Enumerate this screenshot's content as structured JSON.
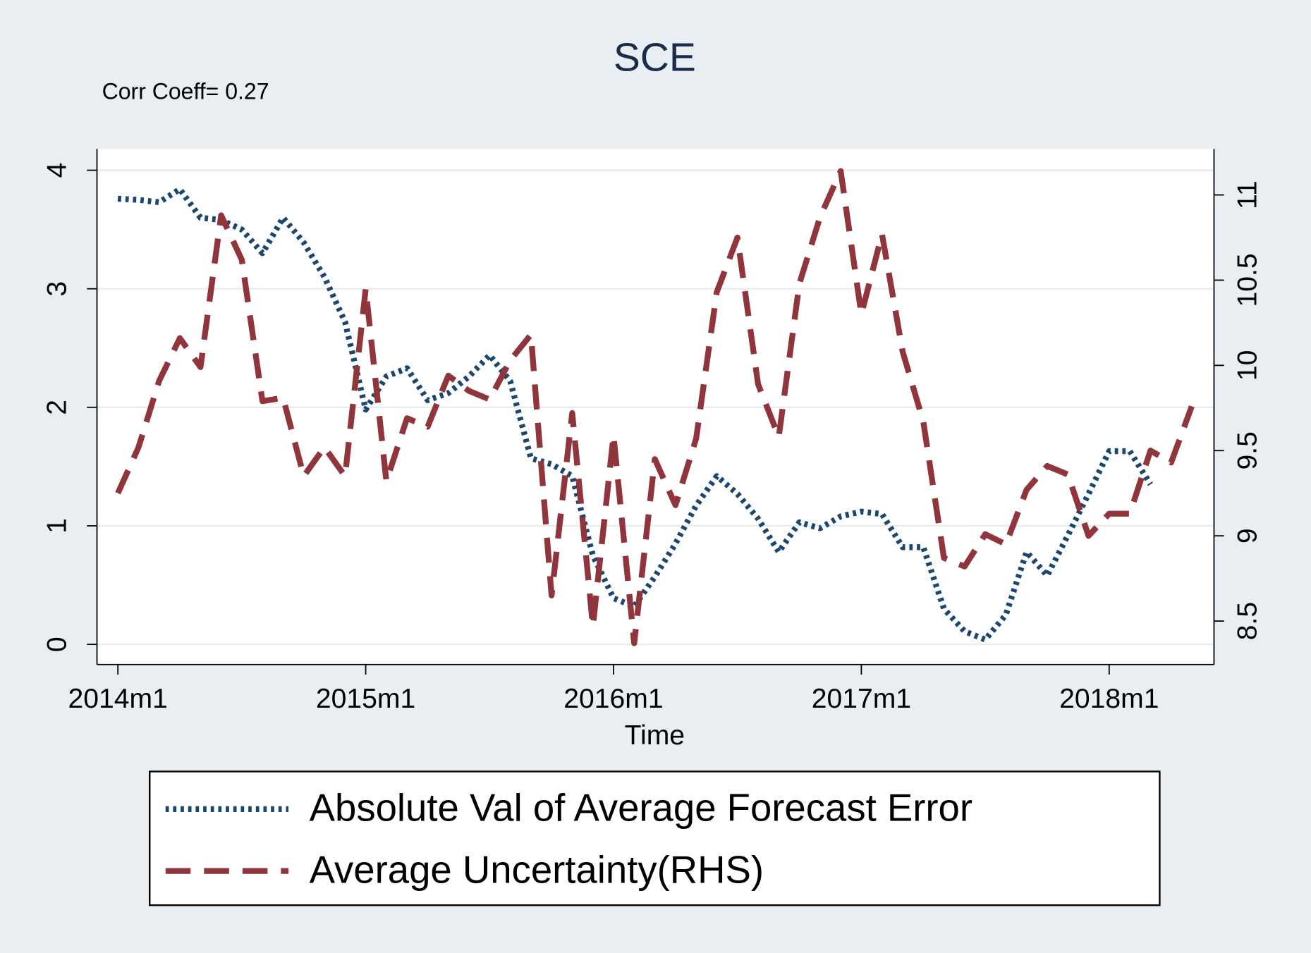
{
  "chart_data": {
    "type": "line",
    "title": "SCE",
    "annotation": "Corr Coeff= 0.27",
    "x_label": "Time",
    "x": [
      "2014m1",
      "2014m2",
      "2014m3",
      "2014m4",
      "2014m5",
      "2014m6",
      "2014m7",
      "2014m8",
      "2014m9",
      "2014m10",
      "2014m11",
      "2014m12",
      "2015m1",
      "2015m2",
      "2015m3",
      "2015m4",
      "2015m5",
      "2015m6",
      "2015m7",
      "2015m8",
      "2015m9",
      "2015m10",
      "2015m11",
      "2015m12",
      "2016m1",
      "2016m2",
      "2016m3",
      "2016m4",
      "2016m5",
      "2016m6",
      "2016m7",
      "2016m8",
      "2016m9",
      "2016m10",
      "2016m11",
      "2016m12",
      "2017m1",
      "2017m2",
      "2017m3",
      "2017m4",
      "2017m5",
      "2017m6",
      "2017m7",
      "2017m8",
      "2017m9",
      "2017m10",
      "2017m11",
      "2017m12",
      "2018m1",
      "2018m2",
      "2018m3",
      "2018m4",
      "2018m5"
    ],
    "xticks": [
      "2014m1",
      "2015m1",
      "2016m1",
      "2017m1",
      "2018m1"
    ],
    "series": [
      {
        "name": "Absolute Val of Average Forecast Error",
        "color": "#1a476f",
        "values": [
          3.76,
          3.75,
          3.73,
          3.84,
          3.6,
          3.58,
          3.5,
          3.3,
          3.6,
          3.39,
          3.1,
          2.72,
          1.98,
          2.26,
          2.33,
          2.06,
          2.12,
          2.26,
          2.44,
          2.22,
          1.57,
          1.52,
          1.42,
          0.75,
          0.39,
          0.32,
          0.57,
          0.85,
          1.17,
          1.42,
          1.27,
          1.06,
          0.78,
          1.03,
          0.98,
          1.08,
          1.12,
          1.1,
          0.82,
          0.82,
          0.3,
          0.11,
          0.04,
          0.25,
          0.78,
          0.58,
          0.92,
          1.27,
          1.63,
          1.63,
          1.35,
          null,
          null
        ]
      },
      {
        "name": "Average Uncertainty(RHS)",
        "color": "#90353b",
        "axis": "y2",
        "values": [
          9.25,
          9.52,
          9.91,
          10.16,
          9.99,
          10.88,
          10.62,
          9.79,
          9.81,
          9.35,
          9.52,
          9.35,
          10.45,
          9.32,
          9.69,
          9.64,
          9.94,
          9.85,
          9.8,
          10.03,
          10.18,
          8.65,
          9.72,
          8.47,
          9.59,
          8.37,
          9.45,
          9.18,
          9.57,
          10.43,
          10.75,
          9.89,
          9.58,
          10.48,
          10.87,
          11.14,
          10.3,
          10.77,
          10.08,
          9.67,
          8.87,
          8.82,
          9.01,
          8.95,
          9.27,
          9.41,
          9.36,
          9.0,
          9.13,
          9.13,
          9.5,
          9.43,
          9.76
        ]
      }
    ],
    "ylim": [
      -0.17,
      4.18
    ],
    "yticks": [
      0,
      1,
      2,
      3,
      4
    ],
    "y2lim": [
      8.245,
      11.27
    ],
    "y2ticks": [
      8.5,
      9,
      9.5,
      10,
      10.5,
      11
    ],
    "grid": true
  }
}
